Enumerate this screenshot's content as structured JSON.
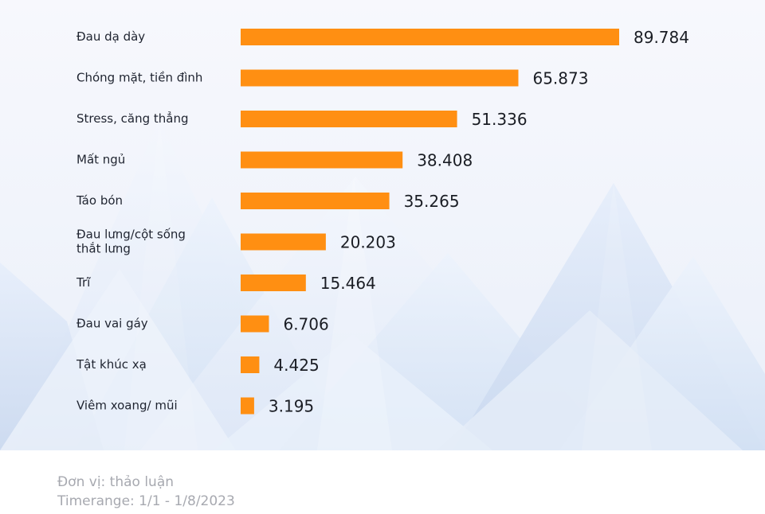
{
  "chart_data": {
    "type": "bar",
    "orientation": "horizontal",
    "categories": [
      [
        "Đau dạ dày"
      ],
      [
        "Chóng mặt, tiền đình"
      ],
      [
        "Stress, căng thẳng"
      ],
      [
        "Mất ngủ"
      ],
      [
        "Táo bón"
      ],
      [
        "Đau lưng/cột sống",
        "thắt lưng"
      ],
      [
        "Trĩ"
      ],
      [
        "Đau vai gáy"
      ],
      [
        "Tật khúc xạ"
      ],
      [
        "Viêm xoang/ mũi"
      ]
    ],
    "values": [
      89784,
      65873,
      51336,
      38408,
      35265,
      20203,
      15464,
      6706,
      4425,
      3195
    ],
    "value_labels": [
      "89.784",
      "65.873",
      "51.336",
      "38.408",
      "35.265",
      "20.203",
      "15.464",
      "6.706",
      "4.425",
      "3.195"
    ],
    "title": "",
    "xlabel": "",
    "ylabel": "",
    "xlim": [
      0,
      89784
    ],
    "grid": false,
    "legend": "none",
    "colors": {
      "bar": "#ff8f12",
      "category_text": "#1f2430",
      "value_text": "#1a1d24",
      "panel": "#f3f5fc",
      "mountain_light": "#edf2fb",
      "mountain_mid": "#dce6f6",
      "mountain_dark": "#cad9f0",
      "footer_text": "#a7a9b0"
    }
  },
  "footer": {
    "unit": "Đơn vị: thảo luận",
    "timerange": "Timerange: 1/1 - 1/8/2023"
  }
}
